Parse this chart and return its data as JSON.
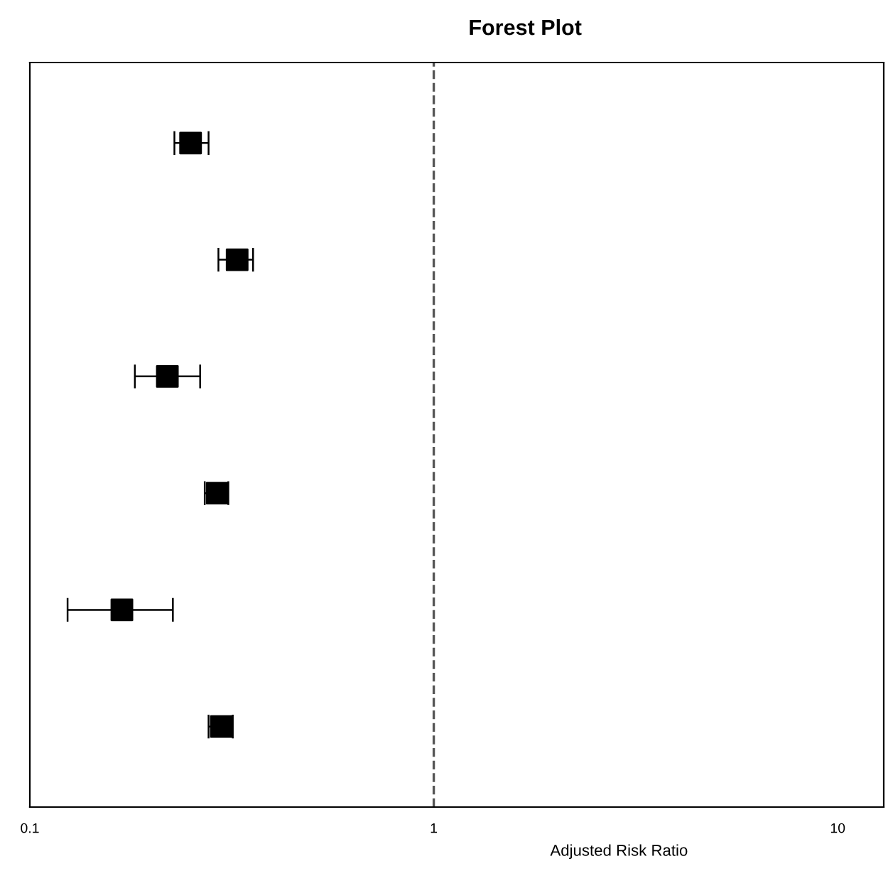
{
  "chart_data": {
    "type": "scatter",
    "orientation": "horizontal",
    "title": "Forest Plot",
    "xlabel": "Adjusted Risk Ratio",
    "categories": [
      null,
      null,
      null,
      null,
      null,
      null
    ],
    "series": [
      {
        "color": "#000000",
        "values": [
          0.25,
          0.326,
          0.219,
          0.291,
          0.169,
          0.298
        ],
        "errors": [
          [
            0.228,
            0.277
          ],
          [
            0.293,
            0.357
          ],
          [
            0.182,
            0.264
          ],
          [
            0.271,
            0.31
          ],
          [
            0.124,
            0.226
          ],
          [
            0.277,
            0.318
          ]
        ]
      }
    ],
    "log": "x",
    "xlim": [
      0.1,
      13
    ],
    "xticks": [
      0.1,
      1,
      10
    ],
    "tick_labels": "x",
    "marker": "square",
    "grid": false,
    "legend": false,
    "ref_lines": [
      {
        "axis": "x",
        "value": 1,
        "color": "#555555",
        "line_style": "dashed"
      }
    ]
  }
}
